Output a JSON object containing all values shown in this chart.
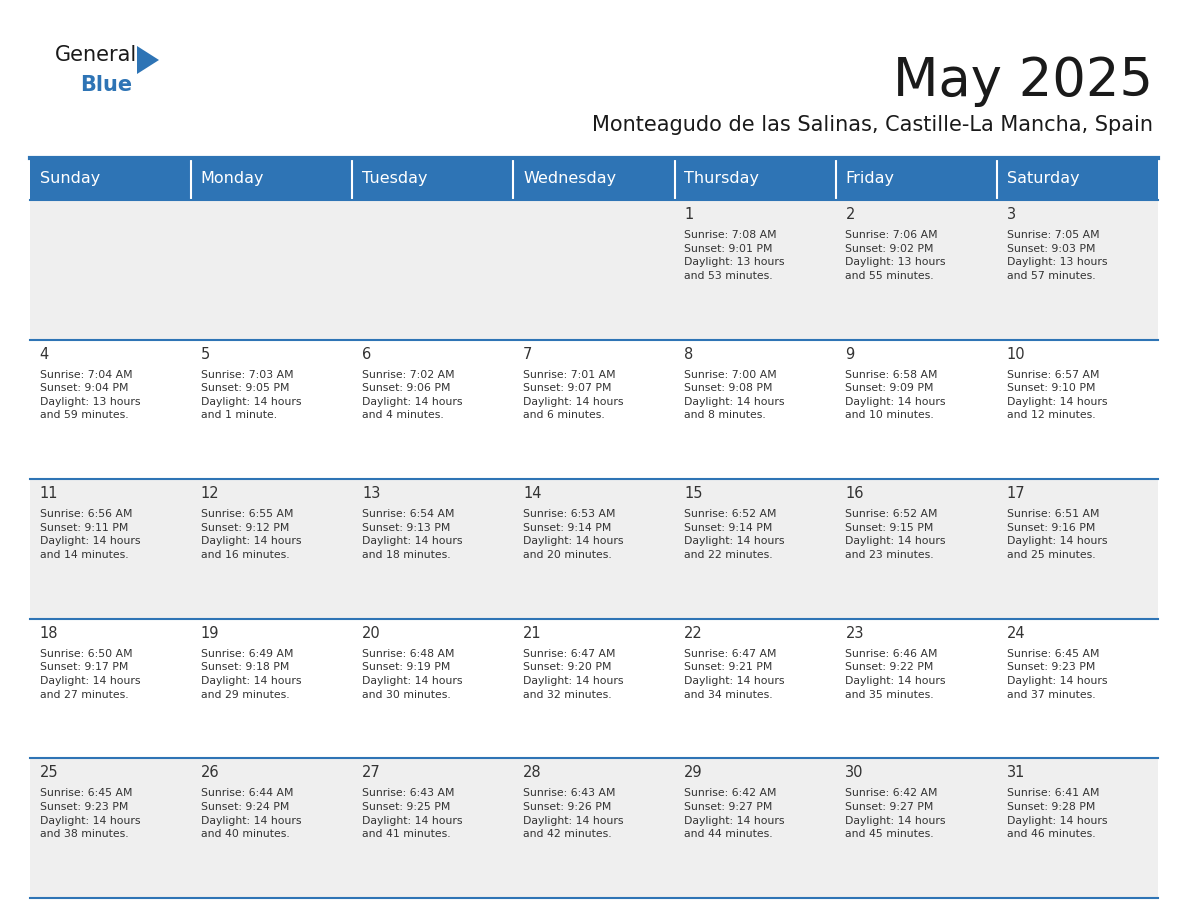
{
  "title": "May 2025",
  "subtitle": "Monteagudo de las Salinas, Castille-La Mancha, Spain",
  "header_bg": "#2E74B5",
  "header_text": "#FFFFFF",
  "row_bg_even": "#FFFFFF",
  "row_bg_odd": "#EFEFEF",
  "cell_text": "#333333",
  "day_number_color": "#333333",
  "border_color": "#2E74B5",
  "days_of_week": [
    "Sunday",
    "Monday",
    "Tuesday",
    "Wednesday",
    "Thursday",
    "Friday",
    "Saturday"
  ],
  "weeks": [
    [
      {
        "day": "",
        "info": ""
      },
      {
        "day": "",
        "info": ""
      },
      {
        "day": "",
        "info": ""
      },
      {
        "day": "",
        "info": ""
      },
      {
        "day": "1",
        "info": "Sunrise: 7:08 AM\nSunset: 9:01 PM\nDaylight: 13 hours\nand 53 minutes."
      },
      {
        "day": "2",
        "info": "Sunrise: 7:06 AM\nSunset: 9:02 PM\nDaylight: 13 hours\nand 55 minutes."
      },
      {
        "day": "3",
        "info": "Sunrise: 7:05 AM\nSunset: 9:03 PM\nDaylight: 13 hours\nand 57 minutes."
      }
    ],
    [
      {
        "day": "4",
        "info": "Sunrise: 7:04 AM\nSunset: 9:04 PM\nDaylight: 13 hours\nand 59 minutes."
      },
      {
        "day": "5",
        "info": "Sunrise: 7:03 AM\nSunset: 9:05 PM\nDaylight: 14 hours\nand 1 minute."
      },
      {
        "day": "6",
        "info": "Sunrise: 7:02 AM\nSunset: 9:06 PM\nDaylight: 14 hours\nand 4 minutes."
      },
      {
        "day": "7",
        "info": "Sunrise: 7:01 AM\nSunset: 9:07 PM\nDaylight: 14 hours\nand 6 minutes."
      },
      {
        "day": "8",
        "info": "Sunrise: 7:00 AM\nSunset: 9:08 PM\nDaylight: 14 hours\nand 8 minutes."
      },
      {
        "day": "9",
        "info": "Sunrise: 6:58 AM\nSunset: 9:09 PM\nDaylight: 14 hours\nand 10 minutes."
      },
      {
        "day": "10",
        "info": "Sunrise: 6:57 AM\nSunset: 9:10 PM\nDaylight: 14 hours\nand 12 minutes."
      }
    ],
    [
      {
        "day": "11",
        "info": "Sunrise: 6:56 AM\nSunset: 9:11 PM\nDaylight: 14 hours\nand 14 minutes."
      },
      {
        "day": "12",
        "info": "Sunrise: 6:55 AM\nSunset: 9:12 PM\nDaylight: 14 hours\nand 16 minutes."
      },
      {
        "day": "13",
        "info": "Sunrise: 6:54 AM\nSunset: 9:13 PM\nDaylight: 14 hours\nand 18 minutes."
      },
      {
        "day": "14",
        "info": "Sunrise: 6:53 AM\nSunset: 9:14 PM\nDaylight: 14 hours\nand 20 minutes."
      },
      {
        "day": "15",
        "info": "Sunrise: 6:52 AM\nSunset: 9:14 PM\nDaylight: 14 hours\nand 22 minutes."
      },
      {
        "day": "16",
        "info": "Sunrise: 6:52 AM\nSunset: 9:15 PM\nDaylight: 14 hours\nand 23 minutes."
      },
      {
        "day": "17",
        "info": "Sunrise: 6:51 AM\nSunset: 9:16 PM\nDaylight: 14 hours\nand 25 minutes."
      }
    ],
    [
      {
        "day": "18",
        "info": "Sunrise: 6:50 AM\nSunset: 9:17 PM\nDaylight: 14 hours\nand 27 minutes."
      },
      {
        "day": "19",
        "info": "Sunrise: 6:49 AM\nSunset: 9:18 PM\nDaylight: 14 hours\nand 29 minutes."
      },
      {
        "day": "20",
        "info": "Sunrise: 6:48 AM\nSunset: 9:19 PM\nDaylight: 14 hours\nand 30 minutes."
      },
      {
        "day": "21",
        "info": "Sunrise: 6:47 AM\nSunset: 9:20 PM\nDaylight: 14 hours\nand 32 minutes."
      },
      {
        "day": "22",
        "info": "Sunrise: 6:47 AM\nSunset: 9:21 PM\nDaylight: 14 hours\nand 34 minutes."
      },
      {
        "day": "23",
        "info": "Sunrise: 6:46 AM\nSunset: 9:22 PM\nDaylight: 14 hours\nand 35 minutes."
      },
      {
        "day": "24",
        "info": "Sunrise: 6:45 AM\nSunset: 9:23 PM\nDaylight: 14 hours\nand 37 minutes."
      }
    ],
    [
      {
        "day": "25",
        "info": "Sunrise: 6:45 AM\nSunset: 9:23 PM\nDaylight: 14 hours\nand 38 minutes."
      },
      {
        "day": "26",
        "info": "Sunrise: 6:44 AM\nSunset: 9:24 PM\nDaylight: 14 hours\nand 40 minutes."
      },
      {
        "day": "27",
        "info": "Sunrise: 6:43 AM\nSunset: 9:25 PM\nDaylight: 14 hours\nand 41 minutes."
      },
      {
        "day": "28",
        "info": "Sunrise: 6:43 AM\nSunset: 9:26 PM\nDaylight: 14 hours\nand 42 minutes."
      },
      {
        "day": "29",
        "info": "Sunrise: 6:42 AM\nSunset: 9:27 PM\nDaylight: 14 hours\nand 44 minutes."
      },
      {
        "day": "30",
        "info": "Sunrise: 6:42 AM\nSunset: 9:27 PM\nDaylight: 14 hours\nand 45 minutes."
      },
      {
        "day": "31",
        "info": "Sunrise: 6:41 AM\nSunset: 9:28 PM\nDaylight: 14 hours\nand 46 minutes."
      }
    ]
  ],
  "logo_text_general": "General",
  "logo_text_blue": "Blue",
  "logo_color_general": "#1a1a1a",
  "logo_color_blue": "#2E74B5",
  "logo_triangle_color": "#2E74B5",
  "fig_width": 11.88,
  "fig_height": 9.18,
  "dpi": 100
}
